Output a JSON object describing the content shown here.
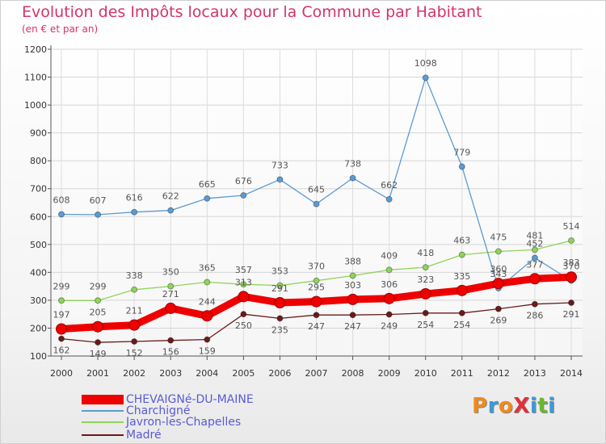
{
  "title": "Evolution des Impôts locaux pour la Commune par Habitant",
  "subtitle": "(en € et par an)",
  "brand": {
    "text": "ProXiti",
    "letter_colors": [
      "#f08a1c",
      "#3a9ad9",
      "#f08a1c",
      "#e0313a",
      "#3a9ad9",
      "#6ab82e",
      "#3a9ad9"
    ]
  },
  "chart_data": {
    "type": "line",
    "x": [
      "2000",
      "2001",
      "2002",
      "2003",
      "2004",
      "2005",
      "2006",
      "2007",
      "2008",
      "2009",
      "2010",
      "2011",
      "2012",
      "2013",
      "2014"
    ],
    "ylim": [
      100,
      1200
    ],
    "yticks": [
      "100",
      "200",
      "300",
      "400",
      "500",
      "600",
      "700",
      "800",
      "900",
      "1000",
      "1100",
      "1200"
    ],
    "grid": true,
    "legend_position": "bottom-left",
    "series": [
      {
        "name": "CHEVAIGNé-DU-MAINE",
        "color": "#ee0000",
        "emphasis": true,
        "values": [
          197,
          205,
          211,
          271,
          244,
          313,
          291,
          295,
          303,
          306,
          323,
          335,
          360,
          377,
          383
        ],
        "value_labels": [
          "197",
          "205",
          "211",
          "271",
          "244",
          "313",
          "291",
          "295",
          "303",
          "306",
          "323",
          "335",
          "360",
          "377",
          "383"
        ]
      },
      {
        "name": "Charchigné",
        "color": "#5b9bd5",
        "values": [
          608,
          607,
          616,
          622,
          665,
          676,
          733,
          645,
          738,
          662,
          1098,
          779,
          343,
          452,
          370
        ],
        "value_labels": [
          "608",
          "607",
          "616",
          "622",
          "665",
          "676",
          "733",
          "645",
          "738",
          "662",
          "1098",
          "779",
          "343",
          "452",
          "370"
        ]
      },
      {
        "name": "Javron-les-Chapelles",
        "color": "#8fd45a",
        "values": [
          299,
          299,
          338,
          350,
          365,
          357,
          353,
          370,
          388,
          409,
          418,
          463,
          475,
          481,
          514
        ],
        "value_labels": [
          "299",
          "299",
          "338",
          "350",
          "365",
          "357",
          "353",
          "370",
          "388",
          "409",
          "418",
          "463",
          "475",
          "481",
          "514"
        ]
      },
      {
        "name": "Madré",
        "color": "#6b1a1a",
        "values": [
          162,
          149,
          152,
          156,
          159,
          250,
          235,
          247,
          247,
          249,
          254,
          254,
          269,
          286,
          291
        ],
        "value_labels": [
          "162",
          "149",
          "152",
          "156",
          "159",
          "250",
          "235",
          "247",
          "247",
          "249",
          "254",
          "254",
          "269",
          "286",
          "291"
        ]
      }
    ]
  }
}
